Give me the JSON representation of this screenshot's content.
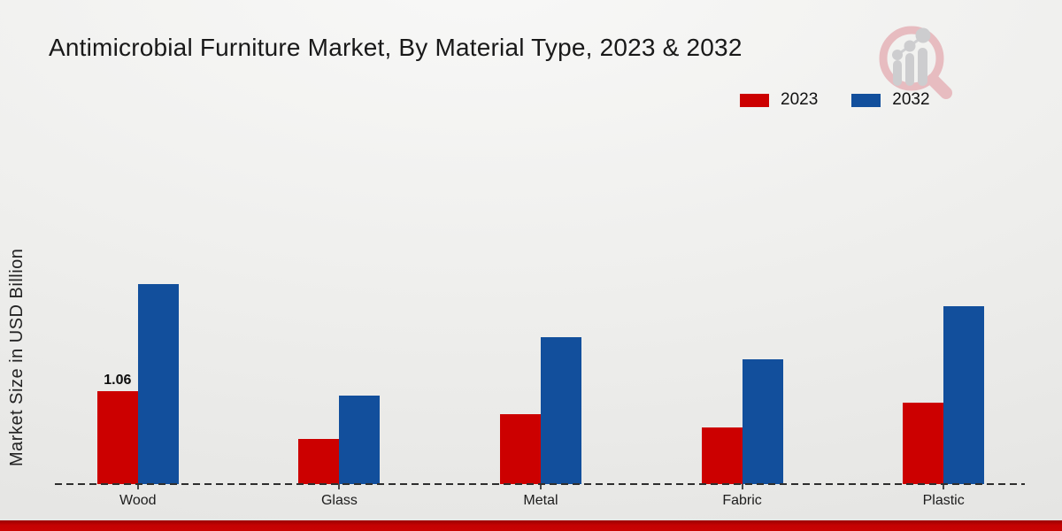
{
  "chart_data": {
    "type": "bar",
    "title": "Antimicrobial Furniture Market, By Material Type, 2023 & 2032",
    "xlabel": "",
    "ylabel": "Market Size in USD Billion",
    "categories": [
      "Wood",
      "Glass",
      "Metal",
      "Fabric",
      "Plastic"
    ],
    "series": [
      {
        "name": "2023",
        "color": "#cc0000",
        "values": [
          1.06,
          0.52,
          0.8,
          0.65,
          0.93
        ]
      },
      {
        "name": "2032",
        "color": "#124f9c",
        "values": [
          2.28,
          1.01,
          1.68,
          1.42,
          2.03
        ]
      }
    ],
    "data_labels": [
      {
        "series": "2023",
        "category": "Wood",
        "text": "1.06"
      }
    ],
    "ylim": [
      0,
      2.5
    ],
    "grid": "off",
    "legend_position": "top-right",
    "baseline_style": "dashed"
  },
  "watermark_icon": "magnifier-bar-chart-logo",
  "accent_colors": {
    "bottom_bar": "#c40202",
    "background_top": "#f8f8f7",
    "background_bottom": "#e2e2e0"
  }
}
